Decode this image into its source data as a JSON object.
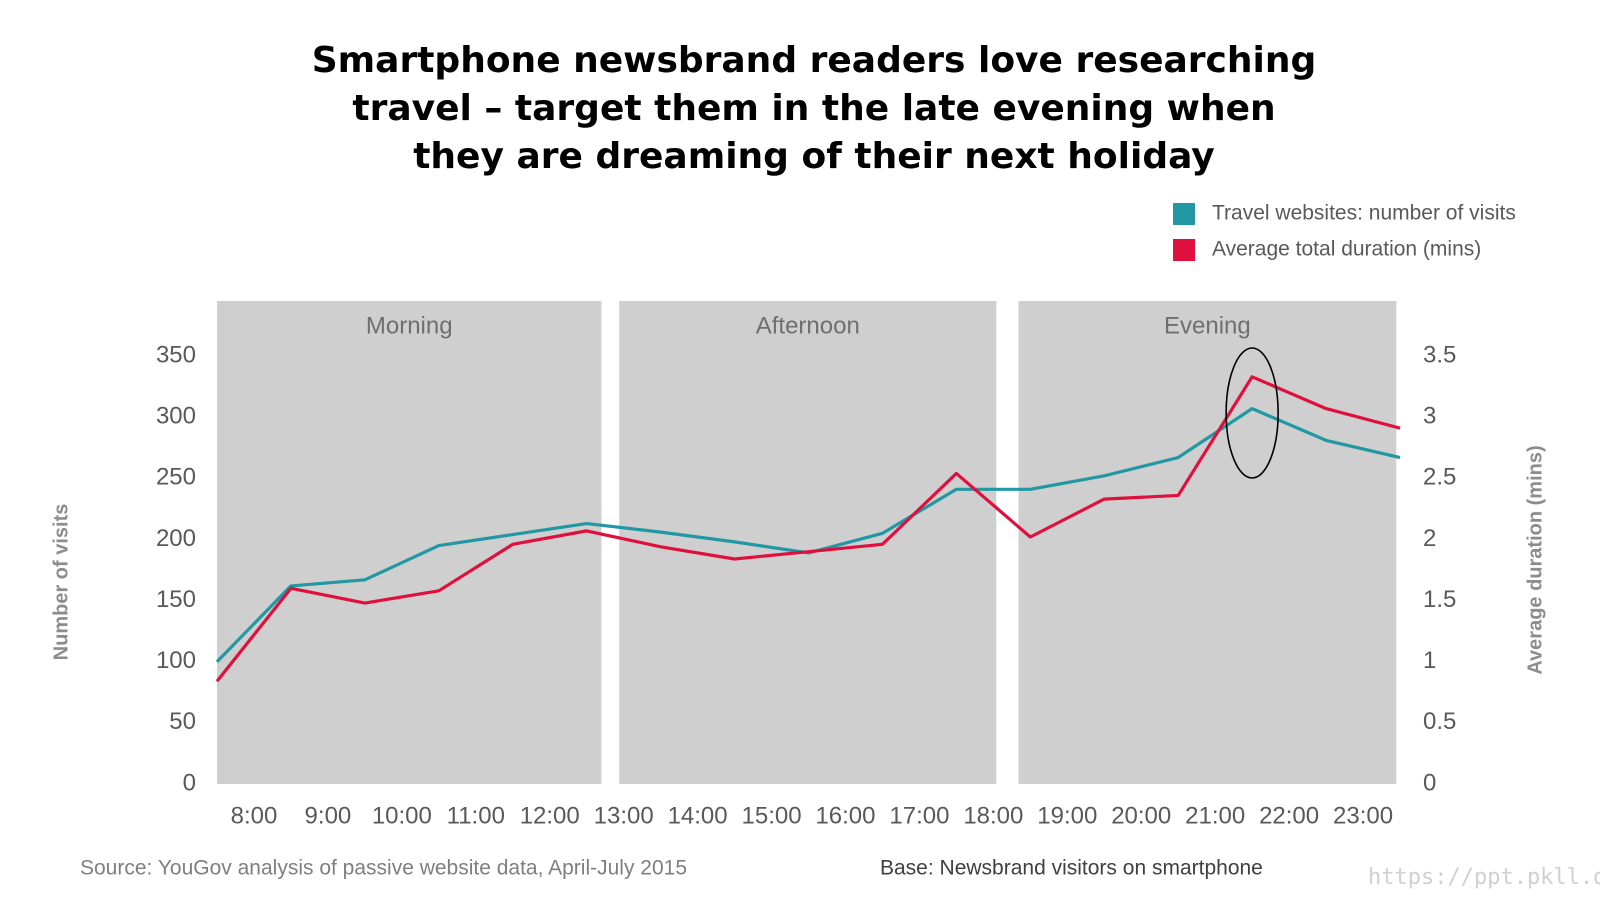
{
  "chart_data": {
    "type": "line",
    "title": [
      "Smartphone newsbrand readers love researching",
      "travel – target them in the late evening when",
      "they are dreaming of their next holiday"
    ],
    "ylabel": "Number of visits",
    "y2label": "Average duration (mins)",
    "source": "Source: YouGov analysis of passive website data, April-July 2015",
    "base": "Base: Newsbrand visitors on smartphone",
    "watermark": "https://ppt.pkll.de",
    "bands": [
      {
        "label": "Morning",
        "from": 7.5,
        "to": 12.7
      },
      {
        "label": "Afternoon",
        "from": 12.94,
        "to": 18.04
      },
      {
        "label": "Evening",
        "from": 18.34,
        "to": 23.45
      }
    ],
    "band_color": "#cfcfcf",
    "x": [
      7.5,
      8.5,
      9.5,
      10.5,
      11.5,
      12.5,
      13.5,
      14.5,
      15.5,
      16.5,
      17.5,
      18.5,
      19.5,
      20.5,
      21.5,
      22.5,
      23.5
    ],
    "xlim": [
      7.5,
      23.5
    ],
    "xticks": [
      {
        "value": 8,
        "label": "8:00"
      },
      {
        "value": 9,
        "label": "9:00"
      },
      {
        "value": 10,
        "label": "10:00"
      },
      {
        "value": 11,
        "label": "11:00"
      },
      {
        "value": 12,
        "label": "12:00"
      },
      {
        "value": 13,
        "label": "13:00"
      },
      {
        "value": 14,
        "label": "14:00"
      },
      {
        "value": 15,
        "label": "15:00"
      },
      {
        "value": 16,
        "label": "16:00"
      },
      {
        "value": 17,
        "label": "17:00"
      },
      {
        "value": 18,
        "label": "18:00"
      },
      {
        "value": 19,
        "label": "19:00"
      },
      {
        "value": 20,
        "label": "20:00"
      },
      {
        "value": 21,
        "label": "21:00"
      },
      {
        "value": 22,
        "label": "22:00"
      },
      {
        "value": 23,
        "label": "23:00"
      }
    ],
    "ylim": [
      0,
      395
    ],
    "yticks": [
      0,
      50,
      100,
      150,
      200,
      250,
      300,
      350
    ],
    "y2lim": [
      0,
      3.95
    ],
    "y2ticks": [
      0,
      0.5,
      1,
      1.5,
      2,
      2.5,
      3,
      3.5
    ],
    "legend": "top-right",
    "series": [
      {
        "name": "Travel websites: number of visits",
        "color": "#2198a3",
        "values": [
          100,
          162,
          167,
          195,
          204,
          213,
          206,
          198,
          189,
          205,
          241,
          241,
          252,
          267,
          307,
          281,
          267
        ]
      },
      {
        "name": "Average total duration (mins)",
        "color": "#e0103e",
        "axis": "y2",
        "values": [
          0.84,
          1.6,
          1.48,
          1.58,
          1.96,
          2.07,
          1.94,
          1.84,
          1.9,
          1.96,
          2.54,
          2.02,
          2.33,
          2.36,
          3.33,
          3.07,
          2.91
        ]
      }
    ]
  }
}
